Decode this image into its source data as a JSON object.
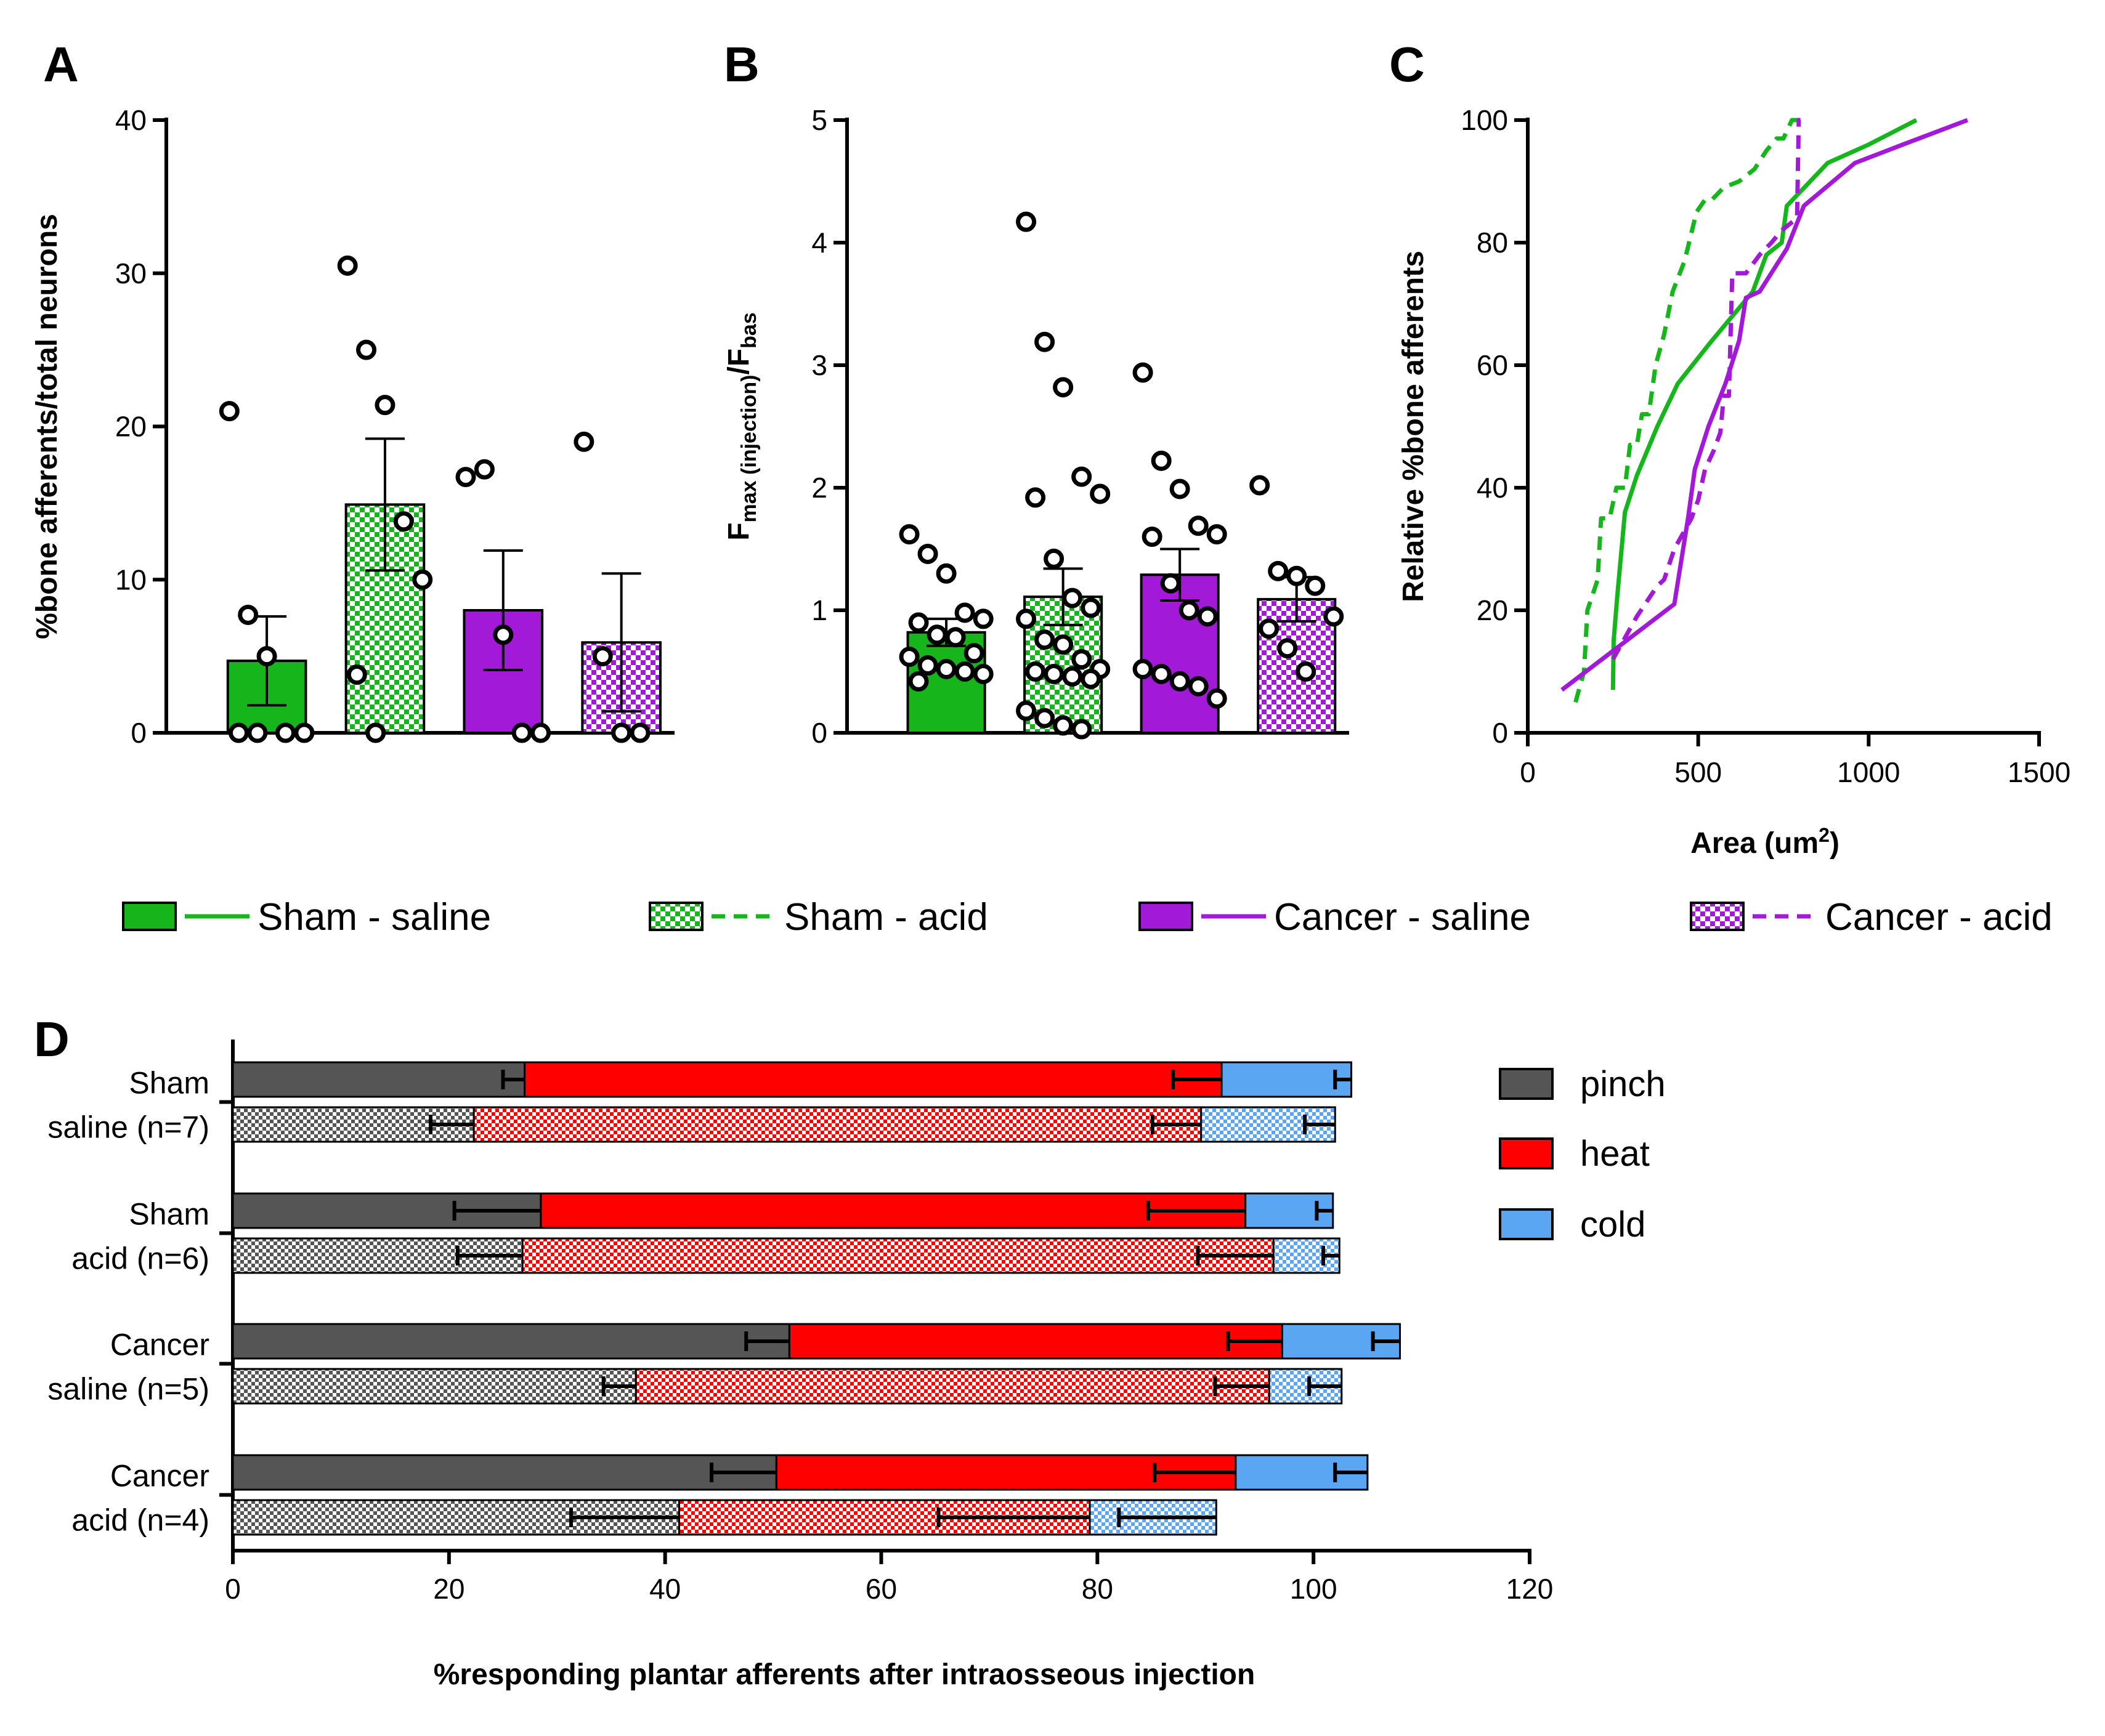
{
  "panel_labels": {
    "a": "A",
    "b": "B",
    "c": "C",
    "d": "D"
  },
  "colors": {
    "sham": "#17b51c",
    "cancer": "#a219d8",
    "pinch": "#555555",
    "heat": "#ff0000",
    "cold": "#5aa6f2"
  },
  "legend": [
    {
      "name": "Sham - saline",
      "pattern": "solid",
      "line": "solid",
      "group": "sham"
    },
    {
      "name": "Sham - acid",
      "pattern": "checker",
      "line": "dashed",
      "group": "sham"
    },
    {
      "name": "Cancer - saline",
      "pattern": "solid",
      "line": "solid",
      "group": "cancer"
    },
    {
      "name": "Cancer - acid",
      "pattern": "checker",
      "line": "dashed",
      "group": "cancer"
    }
  ],
  "chart_data": [
    {
      "id": "A",
      "type": "bar",
      "title": "",
      "xlabel": "",
      "ylabel": "%bone afferents/total neurons",
      "ylim": [
        0,
        40
      ],
      "yticks": [
        "0",
        "10",
        "20",
        "30",
        "40"
      ],
      "categories": [
        "Sham - saline",
        "Sham - acid",
        "Cancer - saline",
        "Cancer - acid"
      ],
      "values": [
        4.7,
        14.9,
        8.0,
        5.9
      ],
      "sem": [
        2.9,
        4.3,
        3.9,
        4.5
      ],
      "points": [
        [
          21.0,
          7.7,
          5.0,
          0,
          0,
          0,
          0
        ],
        [
          30.5,
          25.0,
          21.4,
          13.8,
          10.0,
          3.8,
          0
        ],
        [
          16.7,
          17.2,
          6.4,
          0,
          0
        ],
        [
          19.0,
          5.0,
          0,
          0
        ]
      ]
    },
    {
      "id": "B",
      "type": "bar",
      "title": "",
      "xlabel": "",
      "ylabel": "F",
      "ylabel_sub1": "max (injection)",
      "ylabel_mid": "/F",
      "ylabel_sub2": "bas",
      "ylim": [
        0,
        5
      ],
      "yticks": [
        "0",
        "1",
        "2",
        "3",
        "4",
        "5"
      ],
      "categories": [
        "Sham - saline",
        "Sham - acid",
        "Cancer - saline",
        "Cancer - acid"
      ],
      "values": [
        0.82,
        1.11,
        1.29,
        1.09
      ],
      "sem": [
        0.11,
        0.23,
        0.21,
        0.18
      ],
      "points": [
        [
          1.62,
          1.46,
          1.3,
          0.98,
          0.93,
          0.9,
          0.8,
          0.78,
          0.65,
          0.62,
          0.55,
          0.52,
          0.5,
          0.48,
          0.42
        ],
        [
          4.17,
          3.19,
          2.82,
          2.09,
          1.95,
          1.92,
          1.42,
          1.1,
          1.02,
          0.93,
          0.76,
          0.72,
          0.6,
          0.52,
          0.5,
          0.48,
          0.46,
          0.44,
          0.18,
          0.12,
          0.06,
          0.03
        ],
        [
          2.94,
          2.22,
          1.99,
          1.69,
          1.62,
          1.6,
          1.22,
          1.0,
          0.95,
          0.52,
          0.48,
          0.42,
          0.38,
          0.28
        ],
        [
          2.02,
          1.32,
          1.28,
          1.2,
          0.95,
          0.85,
          0.69,
          0.5
        ]
      ]
    },
    {
      "id": "C",
      "type": "line",
      "title": "",
      "xlabel": "Area (um",
      "xlabel_sup": "2",
      "xlabel_end": ")",
      "ylabel": "Relative %bone afferents",
      "xlim": [
        0,
        1500
      ],
      "ylim": [
        0,
        100
      ],
      "xticks": [
        "0",
        "500",
        "1000",
        "1500"
      ],
      "yticks": [
        "0",
        "20",
        "40",
        "60",
        "80",
        "100"
      ],
      "series": [
        {
          "name": "Sham - saline",
          "x": [
            250,
            252,
            262,
            285,
            320,
            380,
            440,
            540,
            660,
            700,
            745,
            760,
            880,
            1000,
            1140
          ],
          "y": [
            7,
            15,
            22,
            36,
            42,
            50,
            57,
            64,
            72,
            78,
            80,
            86,
            93,
            96,
            100
          ]
        },
        {
          "name": "Sham - acid",
          "x": [
            140,
            165,
            175,
            205,
            215,
            240,
            260,
            285,
            300,
            320,
            335,
            355,
            375,
            400,
            425,
            460,
            495,
            520,
            540,
            575,
            620,
            665,
            700,
            730,
            750,
            775,
            790,
            800
          ],
          "y": [
            5,
            10,
            20,
            25,
            35,
            35,
            40,
            40,
            47,
            47,
            52,
            52,
            60,
            65,
            72,
            77,
            85,
            87,
            87,
            89,
            90,
            92,
            95,
            97,
            97,
            100,
            100,
            100
          ]
        },
        {
          "name": "Cancer - saline",
          "x": [
            100,
            430,
            430,
            470,
            490,
            530,
            580,
            620,
            640,
            680,
            760,
            810,
            960,
            1100,
            1290
          ],
          "y": [
            7,
            21,
            21,
            35,
            43,
            50,
            57,
            64,
            71,
            72,
            79,
            86,
            93,
            96,
            100
          ]
        },
        {
          "name": "Cancer - acid",
          "x": [
            250,
            320,
            380,
            400,
            430,
            450,
            480,
            500,
            520,
            545,
            565,
            575,
            590,
            600,
            620,
            640,
            680,
            715,
            745,
            790,
            795,
            800
          ],
          "y": [
            12,
            19,
            24,
            25,
            30,
            32,
            35,
            38,
            43,
            46,
            49,
            55,
            55,
            75,
            75,
            75,
            78,
            80,
            82,
            84,
            100,
            100
          ]
        }
      ]
    },
    {
      "id": "D",
      "type": "bar",
      "orientation": "horizontal-stacked",
      "title": "",
      "xlabel": "%responding plantar afferents after intraosseous injection",
      "ylabel": "",
      "xlim": [
        0,
        120
      ],
      "xticks": [
        "0",
        "20",
        "40",
        "60",
        "80",
        "100",
        "120"
      ],
      "groups": [
        {
          "line1": "Sham",
          "line2": "saline (n=7)"
        },
        {
          "line1": "Sham",
          "line2": "acid (n=6)"
        },
        {
          "line1": "Cancer",
          "line2": "saline (n=5)"
        },
        {
          "line1": "Cancer",
          "line2": "acid (n=4)"
        }
      ],
      "stack_legend": [
        "pinch",
        "heat",
        "cold"
      ],
      "rows": [
        {
          "group": 0,
          "pattern": "solid",
          "pinch": 27.0,
          "heat": 64.5,
          "cold": 12.0,
          "err": [
            2.0,
            4.5,
            1.5
          ]
        },
        {
          "group": 0,
          "pattern": "checker",
          "pinch": 22.3,
          "heat": 67.3,
          "cold": 12.4,
          "err": [
            4.0,
            4.5,
            2.8
          ]
        },
        {
          "group": 1,
          "pattern": "solid",
          "pinch": 28.5,
          "heat": 65.2,
          "cold": 8.1,
          "err": [
            8.0,
            9.0,
            1.5
          ]
        },
        {
          "group": 1,
          "pattern": "checker",
          "pinch": 26.8,
          "heat": 69.5,
          "cold": 6.1,
          "err": [
            6.0,
            7.0,
            1.5
          ]
        },
        {
          "group": 2,
          "pattern": "solid",
          "pinch": 51.5,
          "heat": 45.6,
          "cold": 10.9,
          "err": [
            4.0,
            5.0,
            2.5
          ]
        },
        {
          "group": 2,
          "pattern": "checker",
          "pinch": 37.3,
          "heat": 58.6,
          "cold": 6.7,
          "err": [
            3.0,
            5.0,
            3.0
          ]
        },
        {
          "group": 3,
          "pattern": "solid",
          "pinch": 50.3,
          "heat": 42.5,
          "cold": 12.2,
          "err": [
            6.0,
            7.5,
            3.0
          ]
        },
        {
          "group": 3,
          "pattern": "checker",
          "pinch": 41.3,
          "heat": 38.0,
          "cold": 11.7,
          "err": [
            10.0,
            14.0,
            9.0
          ]
        }
      ]
    }
  ]
}
